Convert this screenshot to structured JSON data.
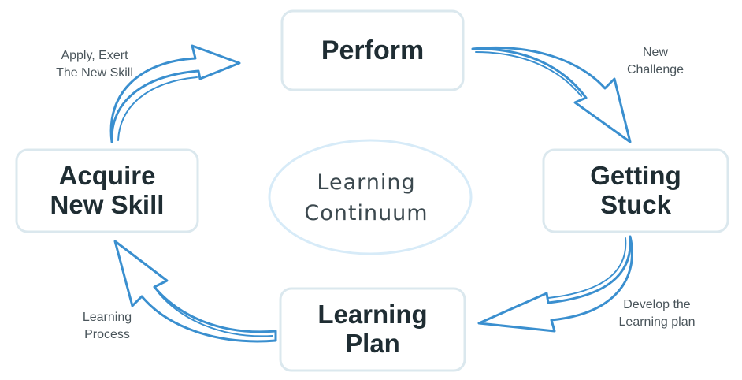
{
  "diagram": {
    "center": {
      "line1": "Learning",
      "line2": "Continuum"
    },
    "nodes": {
      "perform": {
        "line1": "Perform"
      },
      "stuck": {
        "line1": "Getting",
        "line2": "Stuck"
      },
      "plan": {
        "line1": "Learning",
        "line2": "Plan"
      },
      "acquire": {
        "line1": "Acquire",
        "line2": "New Skill"
      }
    },
    "edges": {
      "challenge": {
        "line1": "New",
        "line2": "Challenge"
      },
      "develop": {
        "line1": "Develop the",
        "line2": "Learning plan"
      },
      "process": {
        "line1": "Learning",
        "line2": "Process"
      },
      "apply": {
        "line1": "Apply, Exert",
        "line2": "The New Skill"
      }
    },
    "colors": {
      "arrow": "#3a8fcf",
      "box_border": "#dbe8ee",
      "ellipse_border": "#d7ebf8",
      "text": "#1f2d33"
    }
  }
}
